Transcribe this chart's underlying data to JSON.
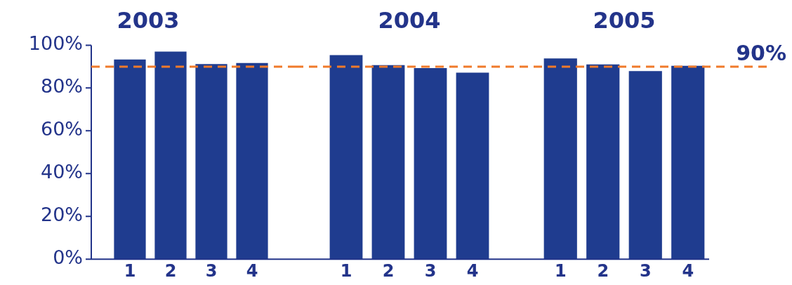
{
  "chart_data": [
    {
      "type": "bar",
      "title": "2003",
      "categories": [
        "1",
        "2",
        "3",
        "4"
      ],
      "values": [
        93.3,
        97,
        91.2,
        91.7
      ],
      "color": "#1f3c8f",
      "ylim": [
        0,
        100
      ],
      "yticks": [
        {
          "value": 0,
          "label": "0%"
        },
        {
          "value": 20,
          "label": "20%"
        },
        {
          "value": 40,
          "label": "40%"
        },
        {
          "value": 60,
          "label": "60%"
        },
        {
          "value": 80,
          "label": "80%"
        },
        {
          "value": 100,
          "label": "100%"
        }
      ],
      "grid": false,
      "legend": false,
      "ref_lines": [
        {
          "axis": "y",
          "value": 90,
          "color": "#f07a2a",
          "line_style": "dashed"
        }
      ]
    },
    {
      "type": "bar",
      "title": "2004",
      "categories": [
        "1",
        "2",
        "3",
        "4"
      ],
      "values": [
        95.4,
        90.7,
        89.3,
        87.2
      ],
      "color": "#1f3c8f",
      "ylim": [
        0,
        100
      ],
      "grid": false,
      "legend": false,
      "tick_labels": "x",
      "ref_lines": [
        {
          "axis": "y",
          "value": 90,
          "color": "#f07a2a",
          "line_style": "dashed"
        }
      ]
    },
    {
      "type": "bar",
      "title": "2005",
      "categories": [
        "1",
        "2",
        "3",
        "4"
      ],
      "values": [
        93.8,
        91,
        87.9,
        90.4
      ],
      "color": "#1f3c8f",
      "ylim": [
        0,
        100
      ],
      "grid": false,
      "legend": false,
      "tick_labels": "x",
      "ref_lines": [
        {
          "axis": "y",
          "value": 90,
          "label": "90%",
          "color": "#f07a2a",
          "line_style": "dashed"
        }
      ]
    }
  ]
}
